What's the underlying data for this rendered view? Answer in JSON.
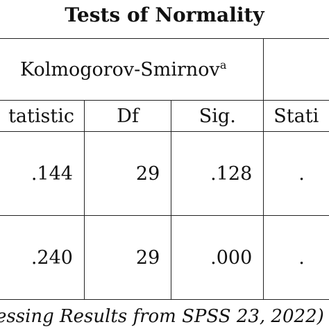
{
  "title": "Tests of Normality",
  "group_header": {
    "ks_label": "Kolmogorov-Smirnov",
    "ks_superscript": "a"
  },
  "columns": {
    "ks_statistic": "tatistic",
    "ks_df": "Df",
    "ks_sig": "Sig.",
    "sw_statistic": "Stati"
  },
  "rows": [
    {
      "statistic": ".144",
      "df": "29",
      "sig": ".128",
      "sw_cut": "."
    },
    {
      "statistic": ".240",
      "df": "29",
      "sig": ".000",
      "sw_cut": "."
    }
  ],
  "source_note": "essing Results from SPSS 23, 2022)"
}
